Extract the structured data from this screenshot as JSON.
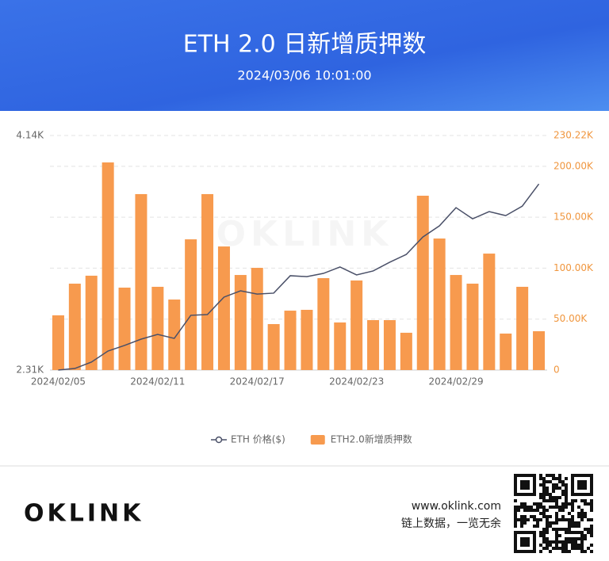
{
  "header": {
    "title": "ETH 2.0 日新增质押数",
    "subtitle": "2024/03/06 10:01:00"
  },
  "chart_data": {
    "type": "bar-line",
    "watermark": "OKLINK",
    "categories": [
      "2024/02/05",
      null,
      null,
      null,
      null,
      null,
      "2024/02/11",
      null,
      null,
      null,
      null,
      null,
      "2024/02/17",
      null,
      null,
      null,
      null,
      null,
      "2024/02/23",
      null,
      null,
      null,
      null,
      null,
      "2024/02/29",
      null,
      null,
      null,
      null,
      null
    ],
    "series": [
      {
        "name": "ETH 价格($)",
        "type": "line",
        "color": "#4a5068",
        "values": [
          2310,
          2322,
          2372,
          2458,
          2502,
          2551,
          2588,
          2557,
          2737,
          2743,
          2879,
          2928,
          2903,
          2910,
          3046,
          3039,
          3064,
          3114,
          3052,
          3083,
          3151,
          3212,
          3348,
          3435,
          3577,
          3490,
          3546,
          3515,
          3589,
          3762
        ]
      },
      {
        "name": "ETH2.0新增质押数",
        "type": "bar",
        "axis": "y2",
        "color": "#f79a4e",
        "values": [
          53700,
          84800,
          92600,
          203800,
          80900,
          172700,
          81700,
          69200,
          128300,
          172700,
          121300,
          93300,
          100300,
          45100,
          58300,
          59100,
          90200,
          46700,
          87900,
          49000,
          49000,
          36600,
          171100,
          129100,
          93300,
          84800,
          114300,
          35800,
          81700,
          38100
        ]
      }
    ],
    "ylim": [
      2310,
      4140
    ],
    "yticks": [
      {
        "value": 2310,
        "label": "2.31K"
      },
      {
        "value": 4140,
        "label": "4.14K"
      }
    ],
    "y2lim": [
      0,
      230220
    ],
    "y2ticks": [
      0,
      {
        "value": 50000,
        "label": "50.00K"
      },
      {
        "value": 100000,
        "label": "100.00K"
      },
      {
        "value": 150000,
        "label": "150.00K"
      },
      {
        "value": 200000,
        "label": "200.00K"
      },
      {
        "value": 230220,
        "label": "230.22K"
      }
    ],
    "grid": true,
    "legend": "bottom"
  },
  "footer": {
    "logo": "OKLINK",
    "url": "www.oklink.com",
    "slogan": "链上数据，一览无余"
  }
}
